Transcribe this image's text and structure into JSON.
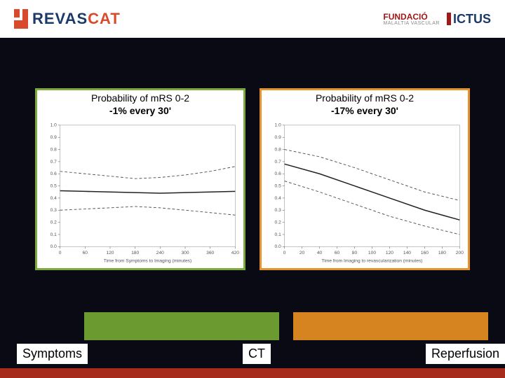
{
  "header": {
    "logo_left_rev": "REVAS",
    "logo_left_cat": "CAT",
    "logo_right_fundacio": "FUNDACIÓ",
    "logo_right_sub": "MALALTIA VASCULAR",
    "logo_right_ictus": "ICTUS"
  },
  "chart_left": {
    "type": "line",
    "title_l1": "Probability of mRS 0-2",
    "title_l2": "-1% every 30'",
    "border_color": "#7aa93c",
    "background_color": "#ffffff",
    "xlabel": "Time from Symptoms to Imaging (minutes)",
    "xlim": [
      0,
      420
    ],
    "xticks": [
      0,
      60,
      120,
      180,
      240,
      300,
      360,
      420
    ],
    "ylim": [
      0,
      1.0
    ],
    "yticks": [
      0,
      0.1,
      0.2,
      0.3,
      0.4,
      0.5,
      0.6,
      0.7,
      0.8,
      0.9,
      1.0
    ],
    "series": [
      {
        "name": "upper",
        "color": "#555",
        "dash": "4,3",
        "width": 1,
        "x": [
          0,
          60,
          120,
          180,
          240,
          300,
          360,
          420
        ],
        "y": [
          0.62,
          0.6,
          0.58,
          0.56,
          0.57,
          0.59,
          0.62,
          0.66
        ]
      },
      {
        "name": "mid",
        "color": "#222",
        "dash": "",
        "width": 1.6,
        "x": [
          0,
          60,
          120,
          180,
          240,
          300,
          360,
          420
        ],
        "y": [
          0.46,
          0.455,
          0.45,
          0.445,
          0.44,
          0.445,
          0.45,
          0.455
        ]
      },
      {
        "name": "lower",
        "color": "#555",
        "dash": "4,3",
        "width": 1,
        "x": [
          0,
          60,
          120,
          180,
          240,
          300,
          360,
          420
        ],
        "y": [
          0.3,
          0.31,
          0.32,
          0.33,
          0.32,
          0.3,
          0.28,
          0.26
        ]
      }
    ],
    "axis_fontsize": 7
  },
  "chart_right": {
    "type": "line",
    "title_l1": "Probability of mRS 0-2",
    "title_l2": "-17% every 30'",
    "border_color": "#e8922c",
    "background_color": "#ffffff",
    "xlabel": "Time from Imaging to revascularization (minutes)",
    "xlim": [
      0,
      200
    ],
    "xticks": [
      0,
      20,
      40,
      60,
      80,
      100,
      120,
      140,
      160,
      180,
      200
    ],
    "ylim": [
      0,
      1.0
    ],
    "yticks": [
      0,
      0.1,
      0.2,
      0.3,
      0.4,
      0.5,
      0.6,
      0.7,
      0.8,
      0.9,
      1.0
    ],
    "series": [
      {
        "name": "upper",
        "color": "#555",
        "dash": "4,3",
        "width": 1,
        "x": [
          0,
          40,
          80,
          120,
          160,
          200
        ],
        "y": [
          0.8,
          0.74,
          0.65,
          0.55,
          0.45,
          0.38
        ]
      },
      {
        "name": "mid",
        "color": "#222",
        "dash": "",
        "width": 1.6,
        "x": [
          0,
          40,
          80,
          120,
          160,
          200
        ],
        "y": [
          0.68,
          0.6,
          0.5,
          0.4,
          0.3,
          0.22
        ]
      },
      {
        "name": "lower",
        "color": "#555",
        "dash": "4,3",
        "width": 1,
        "x": [
          0,
          40,
          80,
          120,
          160,
          200
        ],
        "y": [
          0.54,
          0.45,
          0.35,
          0.25,
          0.17,
          0.1
        ]
      }
    ],
    "axis_fontsize": 7
  },
  "bars": {
    "green_color": "#6b9a30",
    "orange_color": "#d6841f"
  },
  "labels": {
    "symptoms": "Symptoms",
    "ct": "CT",
    "reperfusion": "Reperfusion"
  },
  "stripe_color": "#a72b1c"
}
